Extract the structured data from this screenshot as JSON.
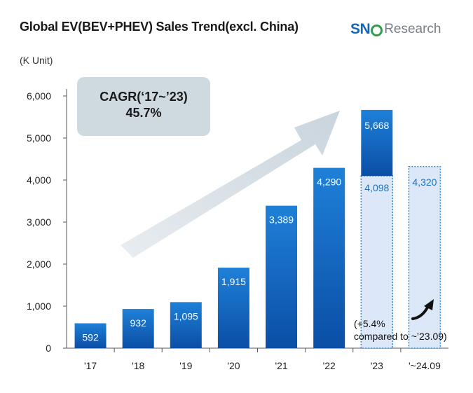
{
  "header": {
    "title": "Global EV(BEV+PHEV) Sales Trend(excl. China)",
    "logo_main": "SNE",
    "logo_sub": "Research",
    "unit": "(K Unit)"
  },
  "annotation": {
    "cagr_title": "CAGR(‘17~’23)",
    "cagr_value": "45.7%",
    "note": "(+5.4%\ncompared to ~’23.09)"
  },
  "colors": {
    "bar_top": "#1f7fd6",
    "bar_bottom": "#0d4fa8",
    "highlight_fill": "#dce8f7",
    "highlight_border": "#2a8ad8",
    "cagr_box": "#cfd9e0",
    "arrow": "#d5dee4"
  },
  "chart_data": {
    "type": "bar",
    "title": "Global EV(BEV+PHEV) Sales Trend(excl. China)",
    "ylabel": "(K Unit)",
    "ylim": [
      0,
      6000
    ],
    "yticks": [
      0,
      1000,
      2000,
      3000,
      4000,
      5000,
      6000
    ],
    "ytick_labels": [
      "0",
      "1,000",
      "2,000",
      "3,000",
      "4,000",
      "5,000",
      "6,000"
    ],
    "categories": [
      "'17",
      "'18",
      "'19",
      "'20",
      "'21",
      "'22",
      "'23",
      "'~24.09"
    ],
    "values": [
      592,
      932,
      1095,
      1915,
      3389,
      4290,
      5668,
      4320
    ],
    "value_labels": [
      "592",
      "932",
      "1,095",
      "1,915",
      "3,389",
      "4,290",
      "5,668",
      "4,320"
    ],
    "partial_2023_to_sep": 4098,
    "partial_2023_label": "4,098",
    "grid": false
  }
}
